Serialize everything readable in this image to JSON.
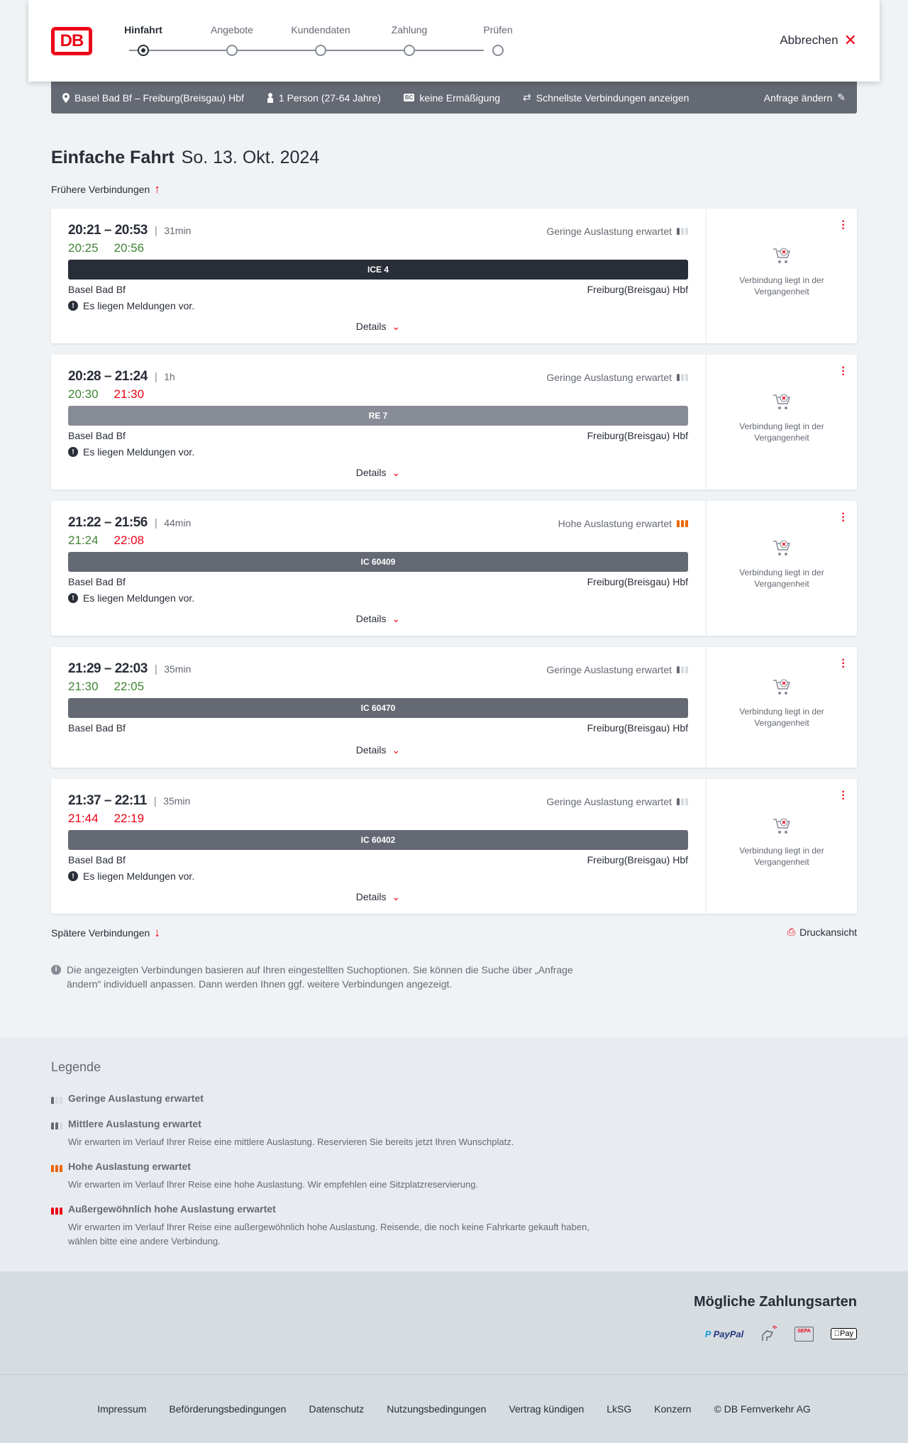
{
  "header": {
    "logo": "DB",
    "steps": [
      "Hinfahrt",
      "Angebote",
      "Kundendaten",
      "Zahlung",
      "Prüfen"
    ],
    "active_step": 0,
    "abort_label": "Abbrechen"
  },
  "query": {
    "route": "Basel Bad Bf – Freiburg(Breisgau) Hbf",
    "travellers": "1 Person (27-64 Jahre)",
    "discount": "keine Ermäßigung",
    "discount_badge": "BC",
    "fastest": "Schnellste Verbindungen anzeigen",
    "change": "Anfrage ändern"
  },
  "title": {
    "type": "Einfache Fahrt",
    "date": "So. 13. Okt. 2024"
  },
  "earlier_label": "Frühere Verbindungen",
  "later_label": "Spätere Verbindungen",
  "print_label": "Druckansicht",
  "details_label": "Details",
  "past_label": "Verbindung liegt in der Vergangenheit",
  "colors": {
    "accent": "#ec0016",
    "ontime": "#408335",
    "delayed": "#ec0016",
    "high_occupancy": "#ec6600"
  },
  "connections": [
    {
      "times": "20:21 – 20:53",
      "duration": "31min",
      "rt_dep": "20:25",
      "rt_dep_status": "ontime",
      "rt_arr": "20:56",
      "rt_arr_status": "ontime",
      "occupancy": "Geringe Auslastung erwartet",
      "occupancy_level": 1,
      "train": "ICE 4",
      "bar_color": "#282d37",
      "from": "Basel Bad Bf",
      "to": "Freiburg(Breisgau) Hbf",
      "message": "Es liegen Meldungen vor."
    },
    {
      "times": "20:28 – 21:24",
      "duration": "1h",
      "rt_dep": "20:30",
      "rt_dep_status": "ontime",
      "rt_arr": "21:30",
      "rt_arr_status": "delayed",
      "occupancy": "Geringe Auslastung erwartet",
      "occupancy_level": 1,
      "train": "RE 7",
      "bar_color": "#878c96",
      "from": "Basel Bad Bf",
      "to": "Freiburg(Breisgau) Hbf",
      "message": "Es liegen Meldungen vor."
    },
    {
      "times": "21:22 – 21:56",
      "duration": "44min",
      "rt_dep": "21:24",
      "rt_dep_status": "ontime",
      "rt_arr": "22:08",
      "rt_arr_status": "delayed",
      "occupancy": "Hohe Auslastung erwartet",
      "occupancy_level": 3,
      "train": "IC 60409",
      "bar_color": "#646973",
      "from": "Basel Bad Bf",
      "to": "Freiburg(Breisgau) Hbf",
      "message": "Es liegen Meldungen vor."
    },
    {
      "times": "21:29 – 22:03",
      "duration": "35min",
      "rt_dep": "21:30",
      "rt_dep_status": "ontime",
      "rt_arr": "22:05",
      "rt_arr_status": "ontime",
      "occupancy": "Geringe Auslastung erwartet",
      "occupancy_level": 1,
      "train": "IC 60470",
      "bar_color": "#646973",
      "from": "Basel Bad Bf",
      "to": "Freiburg(Breisgau) Hbf",
      "message": null
    },
    {
      "times": "21:37 – 22:11",
      "duration": "35min",
      "rt_dep": "21:44",
      "rt_dep_status": "delayed",
      "rt_arr": "22:19",
      "rt_arr_status": "delayed",
      "occupancy": "Geringe Auslastung erwartet",
      "occupancy_level": 1,
      "train": "IC 60402",
      "bar_color": "#646973",
      "from": "Basel Bad Bf",
      "to": "Freiburg(Breisgau) Hbf",
      "message": "Es liegen Meldungen vor."
    }
  ],
  "info_text": "Die angezeigten Verbindungen basieren auf Ihren eingestellten Suchoptionen. Sie können die Suche über „Anfrage ändern“ individuell anpassen. Dann werden Ihnen ggf. weitere Verbindungen angezeigt.",
  "legend": {
    "title": "Legende",
    "items": [
      {
        "label": "Geringe Auslastung erwartet",
        "text": null,
        "level": 1
      },
      {
        "label": "Mittlere Auslastung erwartet",
        "text": "Wir erwarten im Verlauf Ihrer Reise eine mittlere Auslastung. Reservieren Sie bereits jetzt Ihren Wunschplatz.",
        "level": 2
      },
      {
        "label": "Hohe Auslastung erwartet",
        "text": "Wir erwarten im Verlauf Ihrer Reise eine hohe Auslastung. Wir empfehlen eine Sitzplatzreservierung.",
        "level": 3
      },
      {
        "label": "Außergewöhnlich hohe Auslastung erwartet",
        "text": "Wir erwarten im Verlauf Ihrer Reise eine außergewöhnlich hohe Auslastung. Reisende, die noch keine Fahrkarte gekauft haben, wählen bitte eine andere Verbindung.",
        "level": 4
      }
    ]
  },
  "payment": {
    "title": "Mögliche Zahlungsarten",
    "methods": [
      "PayPal",
      "Kreditkarte",
      "SEPA",
      "Pay"
    ]
  },
  "footer": [
    "Impressum",
    "Beförderungsbedingungen",
    "Datenschutz",
    "Nutzungsbedingungen",
    "Vertrag kündigen",
    "LkSG",
    "Konzern",
    "© DB Fernverkehr AG"
  ]
}
